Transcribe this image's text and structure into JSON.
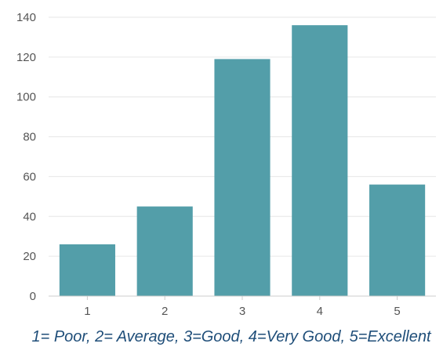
{
  "chart_data": {
    "type": "bar",
    "categories": [
      "1",
      "2",
      "3",
      "4",
      "5"
    ],
    "values": [
      26,
      45,
      119,
      136,
      56
    ],
    "ylim": [
      0,
      140
    ],
    "yticks": [
      0,
      20,
      40,
      60,
      80,
      100,
      120,
      140
    ],
    "grid": true,
    "legend": "none",
    "bar_color": "#539ea9",
    "caption": "1= Poor, 2= Average, 3=Good, 4=Very Good, 5=Excellent"
  }
}
